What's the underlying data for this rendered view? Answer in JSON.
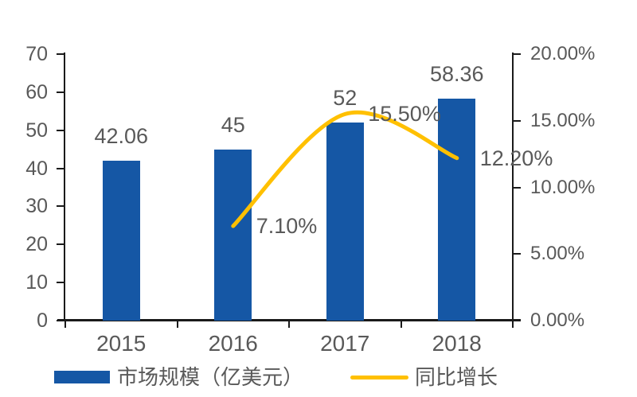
{
  "chart_data": {
    "type": "combo-bar-line",
    "title": "",
    "categories": [
      "2015",
      "2016",
      "2017",
      "2018"
    ],
    "series": [
      {
        "name": "市场规模（亿美元）",
        "type": "bar",
        "axis": "left",
        "color": "#1557A5",
        "values": [
          42.06,
          45,
          52,
          58.36
        ],
        "labels": [
          "42.06",
          "45",
          "52",
          "58.36"
        ]
      },
      {
        "name": "同比增长",
        "type": "line",
        "axis": "right",
        "color": "#FFC000",
        "values": [
          null,
          7.1,
          15.5,
          12.2
        ],
        "labels": [
          "",
          "7.10%",
          "15.50%",
          "12.20%"
        ]
      }
    ],
    "left_axis": {
      "min": 0,
      "max": 70,
      "ticks": [
        "70",
        "60",
        "50",
        "40",
        "30",
        "20",
        "10",
        "0"
      ]
    },
    "right_axis": {
      "min": 0,
      "max": 20,
      "ticks": [
        "20.00%",
        "15.00%",
        "10.00%",
        "5.00%",
        "0.00%"
      ]
    },
    "legend": {
      "position": "bottom",
      "items": [
        {
          "label": "市场规模（亿美元）",
          "swatch": "bar",
          "color": "#1557A5"
        },
        {
          "label": "同比增长",
          "swatch": "line",
          "color": "#FFC000"
        }
      ]
    },
    "grid": false,
    "text_color": "#595959",
    "axis_color": "#1a1a1a"
  }
}
